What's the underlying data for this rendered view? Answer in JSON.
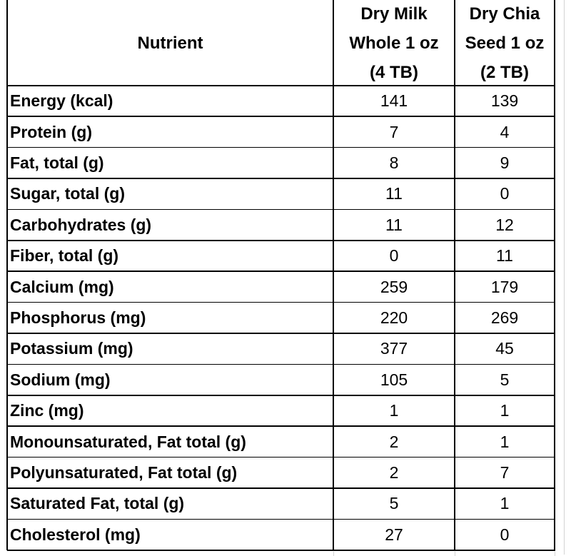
{
  "table": {
    "header": [
      [
        "Nutrient"
      ],
      [
        "Dry Milk",
        "Whole 1 oz",
        "(4 TB)"
      ],
      [
        "Dry Chia",
        "Seed 1 oz",
        "(2 TB)"
      ]
    ],
    "rows": [
      [
        "Energy (kcal)",
        141,
        139
      ],
      [
        "Protein (g)",
        7,
        4
      ],
      [
        "Fat, total (g)",
        8,
        9
      ],
      [
        "Sugar, total (g)",
        11,
        0
      ],
      [
        "Carbohydrates (g)",
        11,
        12
      ],
      [
        "Fiber, total (g)",
        0,
        11
      ],
      [
        "Calcium (mg)",
        259,
        179
      ],
      [
        "Phosphorus (mg)",
        220,
        269
      ],
      [
        "Potassium (mg)",
        377,
        45
      ],
      [
        "Sodium (mg)",
        105,
        5
      ],
      [
        "Zinc (mg)",
        1,
        1
      ],
      [
        "Monounsaturated, Fat total (g)",
        2,
        1
      ],
      [
        "Polyunsaturated, Fat total (g)",
        2,
        7
      ],
      [
        "Saturated Fat, total (g)",
        5,
        1
      ],
      [
        "Cholesterol (mg)",
        27,
        0
      ]
    ]
  }
}
